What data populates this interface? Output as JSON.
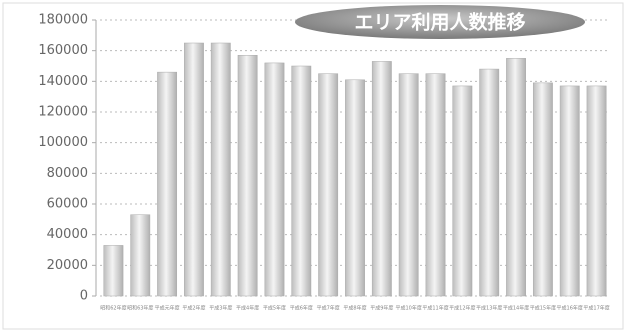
{
  "chart_data": {
    "type": "bar",
    "title": "エリア利用人数推移",
    "categories": [
      "昭和62年度",
      "昭和63年度",
      "平成元年度",
      "平成2年度",
      "平成3年度",
      "平成4年度",
      "平成5年度",
      "平成6年度",
      "平成7年度",
      "平成8年度",
      "平成9年度",
      "平成10年度",
      "平成11年度",
      "平成12年度",
      "平成13年度",
      "平成14年度",
      "平成15年度",
      "平成16年度",
      "平成17年度"
    ],
    "values": [
      33000,
      53000,
      146000,
      165000,
      165000,
      157000,
      152000,
      150000,
      145000,
      141000,
      153000,
      145000,
      145000,
      137000,
      148000,
      155000,
      139000,
      137000,
      137000
    ],
    "ylim": [
      0,
      180000
    ],
    "yticks": [
      0,
      20000,
      40000,
      60000,
      80000,
      100000,
      120000,
      140000,
      160000,
      180000
    ],
    "grid": true
  }
}
